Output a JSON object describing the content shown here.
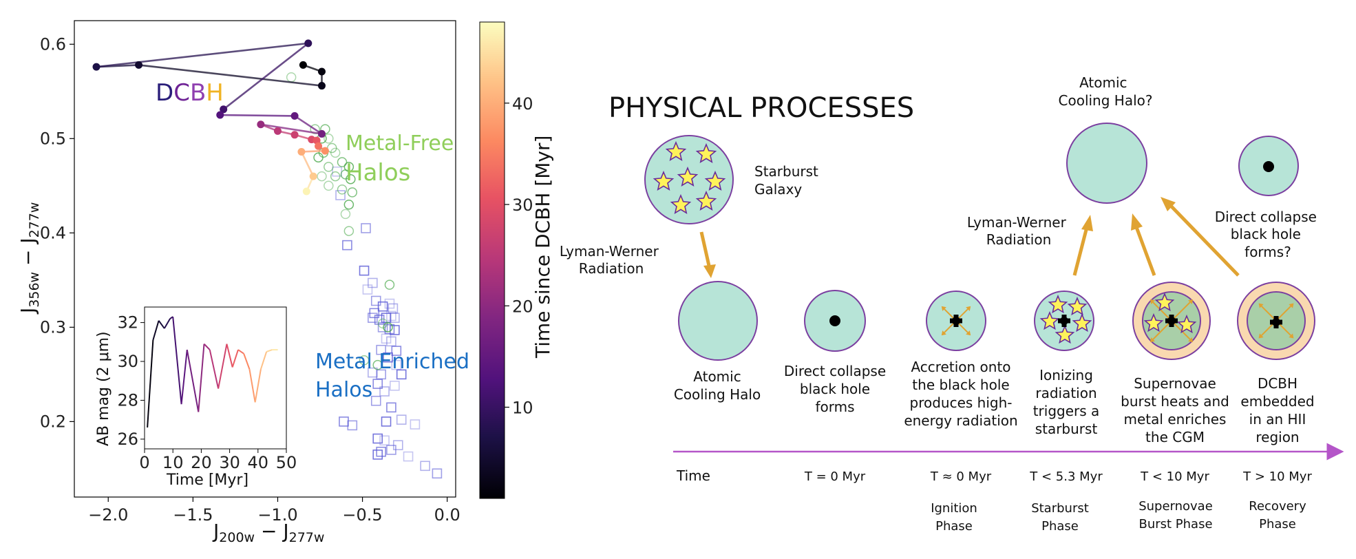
{
  "left_plot": {
    "xlabel_main": "J",
    "xlabel_sub1": "200w",
    "xlabel_mid": " − J",
    "xlabel_sub2": "277w",
    "ylabel_main": "J",
    "ylabel_sub1": "356w",
    "ylabel_mid": " − J",
    "ylabel_sub2": "277w",
    "x_ticks": [
      "−2.0",
      "−1.5",
      "−1.0",
      "−0.5",
      "0.0"
    ],
    "y_ticks": [
      "0.2",
      "0.3",
      "0.4",
      "0.5",
      "0.6"
    ],
    "colorbar_label": "Time since DCBH [Myr]",
    "colorbar_ticks": [
      "10",
      "20",
      "30",
      "40"
    ],
    "dcbh_letters": [
      "D",
      "C",
      "B",
      "H"
    ],
    "dcbh_colors": [
      "#2a1e7a",
      "#6f2396",
      "#8f3fb0",
      "#f0b323"
    ],
    "metal_free_label": [
      "Metal-Free",
      "Halos"
    ],
    "metal_enriched_label": [
      "Metal Enriched",
      "Halos"
    ],
    "metal_free_color": "#8fce5a",
    "metal_enriched_color": "#1a6fc4",
    "inset_xlabel": "Time [Myr]",
    "inset_ylabel": "AB mag (2 μm)",
    "inset_x_ticks": [
      "0",
      "10",
      "20",
      "30",
      "40",
      "50"
    ],
    "inset_y_ticks": [
      "26",
      "28",
      "30",
      "32"
    ]
  },
  "chart_data": [
    {
      "type": "scatter",
      "xlabel": "J200w − J277w",
      "ylabel": "J356w − J277w",
      "xlim": [
        -2.2,
        0.05
      ],
      "ylim": [
        0.12,
        0.625
      ],
      "colorbar": {
        "label": "Time since DCBH [Myr]",
        "range": [
          1,
          48
        ],
        "colormap": "magma"
      },
      "series": [
        {
          "name": "DCBH",
          "marker": "filled circle, connected",
          "points": [
            {
              "x": -0.85,
              "y": 0.578,
              "t": 1
            },
            {
              "x": -0.74,
              "y": 0.571,
              "t": 2
            },
            {
              "x": -0.74,
              "y": 0.556,
              "t": 3
            },
            {
              "x": -1.82,
              "y": 0.578,
              "t": 5
            },
            {
              "x": -2.07,
              "y": 0.576,
              "t": 7
            },
            {
              "x": -0.82,
              "y": 0.601,
              "t": 9
            },
            {
              "x": -1.32,
              "y": 0.531,
              "t": 11
            },
            {
              "x": -1.34,
              "y": 0.525,
              "t": 13
            },
            {
              "x": -0.9,
              "y": 0.524,
              "t": 15
            },
            {
              "x": -0.74,
              "y": 0.505,
              "t": 17
            },
            {
              "x": -1.1,
              "y": 0.515,
              "t": 21
            },
            {
              "x": -1.0,
              "y": 0.508,
              "t": 25
            },
            {
              "x": -0.9,
              "y": 0.504,
              "t": 27
            },
            {
              "x": -0.8,
              "y": 0.499,
              "t": 29
            },
            {
              "x": -0.77,
              "y": 0.498,
              "t": 31
            },
            {
              "x": -0.76,
              "y": 0.492,
              "t": 34
            },
            {
              "x": -0.72,
              "y": 0.487,
              "t": 37
            },
            {
              "x": -0.86,
              "y": 0.486,
              "t": 40
            },
            {
              "x": -0.79,
              "y": 0.46,
              "t": 43
            },
            {
              "x": -0.83,
              "y": 0.444,
              "t": 47
            }
          ]
        },
        {
          "name": "Metal-Free Halos",
          "marker": "open circle",
          "points": [
            {
              "x": -0.92,
              "y": 0.565
            },
            {
              "x": -0.78,
              "y": 0.51
            },
            {
              "x": -0.72,
              "y": 0.51
            },
            {
              "x": -0.74,
              "y": 0.5
            },
            {
              "x": -0.7,
              "y": 0.5
            },
            {
              "x": -0.68,
              "y": 0.49
            },
            {
              "x": -0.73,
              "y": 0.485
            },
            {
              "x": -0.76,
              "y": 0.48
            },
            {
              "x": -0.66,
              "y": 0.485
            },
            {
              "x": -0.7,
              "y": 0.47
            },
            {
              "x": -0.62,
              "y": 0.475
            },
            {
              "x": -0.58,
              "y": 0.47
            },
            {
              "x": -0.74,
              "y": 0.46
            },
            {
              "x": -0.66,
              "y": 0.46
            },
            {
              "x": -0.6,
              "y": 0.462
            },
            {
              "x": -0.57,
              "y": 0.457
            },
            {
              "x": -0.7,
              "y": 0.45
            },
            {
              "x": -0.62,
              "y": 0.446
            },
            {
              "x": -0.56,
              "y": 0.443
            },
            {
              "x": -0.58,
              "y": 0.43
            },
            {
              "x": -0.6,
              "y": 0.42
            },
            {
              "x": -0.58,
              "y": 0.402
            },
            {
              "x": -0.34,
              "y": 0.345
            },
            {
              "x": -0.35,
              "y": 0.3
            },
            {
              "x": -0.38,
              "y": 0.304
            },
            {
              "x": -0.49,
              "y": 0.265
            },
            {
              "x": -0.41,
              "y": 0.26
            }
          ]
        },
        {
          "name": "Metal Enriched Halos",
          "marker": "open square",
          "points": [
            {
              "x": -0.65,
              "y": 0.465
            },
            {
              "x": -0.63,
              "y": 0.44
            },
            {
              "x": -0.48,
              "y": 0.405
            },
            {
              "x": -0.59,
              "y": 0.387
            },
            {
              "x": -0.49,
              "y": 0.36
            },
            {
              "x": -0.47,
              "y": 0.34
            },
            {
              "x": -0.44,
              "y": 0.347
            },
            {
              "x": -0.42,
              "y": 0.328
            },
            {
              "x": -0.43,
              "y": 0.315
            },
            {
              "x": -0.38,
              "y": 0.322
            },
            {
              "x": -0.34,
              "y": 0.325
            },
            {
              "x": -0.32,
              "y": 0.32
            },
            {
              "x": -0.44,
              "y": 0.31
            },
            {
              "x": -0.4,
              "y": 0.308
            },
            {
              "x": -0.36,
              "y": 0.31
            },
            {
              "x": -0.33,
              "y": 0.312
            },
            {
              "x": -0.31,
              "y": 0.31
            },
            {
              "x": -0.38,
              "y": 0.3
            },
            {
              "x": -0.34,
              "y": 0.298
            },
            {
              "x": -0.31,
              "y": 0.297
            },
            {
              "x": -0.36,
              "y": 0.288
            },
            {
              "x": -0.33,
              "y": 0.285
            },
            {
              "x": -0.39,
              "y": 0.276
            },
            {
              "x": -0.3,
              "y": 0.275
            },
            {
              "x": -0.35,
              "y": 0.268
            },
            {
              "x": -0.3,
              "y": 0.26
            },
            {
              "x": -0.44,
              "y": 0.252
            },
            {
              "x": -0.39,
              "y": 0.25
            },
            {
              "x": -0.41,
              "y": 0.24
            },
            {
              "x": -0.27,
              "y": 0.25
            },
            {
              "x": -0.31,
              "y": 0.238
            },
            {
              "x": -0.37,
              "y": 0.232
            },
            {
              "x": -0.42,
              "y": 0.222
            },
            {
              "x": -0.33,
              "y": 0.215
            },
            {
              "x": -0.36,
              "y": 0.2
            },
            {
              "x": -0.19,
              "y": 0.197
            },
            {
              "x": -0.27,
              "y": 0.202
            },
            {
              "x": -0.56,
              "y": 0.196
            },
            {
              "x": -0.61,
              "y": 0.2
            },
            {
              "x": -0.41,
              "y": 0.182
            },
            {
              "x": -0.37,
              "y": 0.18
            },
            {
              "x": -0.29,
              "y": 0.175
            },
            {
              "x": -0.33,
              "y": 0.17
            },
            {
              "x": -0.39,
              "y": 0.168
            },
            {
              "x": -0.41,
              "y": 0.165
            },
            {
              "x": -0.23,
              "y": 0.163
            },
            {
              "x": -0.13,
              "y": 0.153
            },
            {
              "x": -0.06,
              "y": 0.145
            }
          ]
        }
      ]
    },
    {
      "type": "line",
      "xlabel": "Time [Myr]",
      "ylabel": "AB mag (2 μm)",
      "xlim": [
        0,
        50
      ],
      "ylim": [
        25.5,
        32.8
      ],
      "x": [
        1,
        3,
        5,
        7,
        9,
        10,
        13,
        15,
        19,
        21,
        23,
        26,
        29,
        31,
        33,
        35,
        37,
        39,
        41,
        43,
        45,
        47
      ],
      "values": [
        26.6,
        31.1,
        32.1,
        31.7,
        32.2,
        32.3,
        27.8,
        30.6,
        27.4,
        30.9,
        30.6,
        28.6,
        30.9,
        29.7,
        30.6,
        30.4,
        29.6,
        27.9,
        29.6,
        30.5,
        30.6,
        30.6
      ]
    }
  ],
  "diagram": {
    "title": "PHYSICAL PROCESSES",
    "starburst_galaxy": [
      "Starburst",
      "Galaxy"
    ],
    "lw_left": [
      "Lyman-Werner",
      "Radiation"
    ],
    "lw_right": [
      "Lyman-Werner",
      "Radiation"
    ],
    "top_halo_label": [
      "Atomic",
      "Cooling Halo?"
    ],
    "top_dcbh_label": [
      "Direct collapse",
      "black hole",
      "forms?"
    ],
    "stage_captions": [
      [
        "Atomic",
        "Cooling Halo"
      ],
      [
        "Direct collapse",
        "black hole",
        "forms"
      ],
      [
        "Accretion onto",
        "the black hole",
        "produces high-",
        "energy radiation"
      ],
      [
        "Ionizing",
        "radiation",
        "triggers a",
        "starburst"
      ],
      [
        "Supernovae",
        "burst heats and",
        "metal enriches",
        "the CGM"
      ],
      [
        "DCBH",
        "embedded",
        "in an HII",
        "region"
      ]
    ],
    "time_label": "Time",
    "time_values": [
      "T = 0 Myr",
      "T  ≈ 0 Myr",
      "T  < 5.3 Myr",
      "T  < 10 Myr",
      "T  > 10 Myr"
    ],
    "phases": [
      [
        "Ignition",
        "Phase"
      ],
      [
        "Starburst",
        "Phase"
      ],
      [
        "Supernovae",
        "Burst Phase"
      ],
      [
        "Recovery",
        "Phase"
      ]
    ],
    "colors": {
      "halo_fill": "#b7e4d7",
      "halo_stroke": "#7b3fa0",
      "hii_fill": "#f9d9b0",
      "inner_green": "#a9cfa8",
      "arrow": "#e0a332",
      "star_fill": "#fff35a",
      "star_stroke": "#6a2a9a",
      "timeline": "#b455c8"
    }
  }
}
